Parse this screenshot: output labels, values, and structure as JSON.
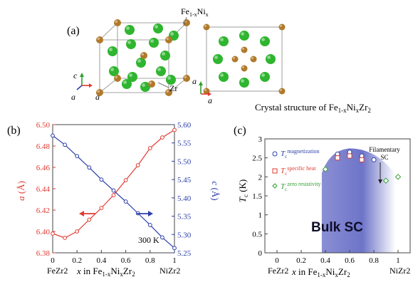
{
  "panel_a": {
    "label": "(a)",
    "atom_label_feni": "Fe1-xNix",
    "atom_label_zr": "Zr",
    "axis_c": "c",
    "axis_a1": "a",
    "axis_a2": "a",
    "axis_a3": "a",
    "axis_a4": "a",
    "caption": "Crystal structure of Fe1-xNixZr2",
    "colors": {
      "zr_atom": "#2fb52f",
      "feni_atom": "#b07a2a",
      "cell_edge": "#9a9a9a"
    }
  },
  "panel_b": {
    "label": "(b)",
    "temp_label": "300 K",
    "x_end_left": "FeZr2",
    "x_end_right": "NiZr2"
  },
  "panel_c": {
    "label": "(c)",
    "region_label": "Bulk SC",
    "filamentary_label": "Filamentary SC",
    "x_end_left": "FeZr2",
    "x_end_right": "NiZr2",
    "legend_magnetization": "magnetization",
    "legend_specific_heat": "specific heat",
    "legend_zero_resistivity": "zero resistivity"
  },
  "chart_data": [
    {
      "type": "line",
      "panel": "b",
      "xlabel": "x in Fe1-xNixZr2",
      "xlim": [
        0,
        1
      ],
      "x_ticks": [
        0,
        0.2,
        0.4,
        0.6,
        0.8,
        1
      ],
      "series": [
        {
          "axis": "left",
          "ylabel": "a (Å)",
          "ylim": [
            6.38,
            6.5
          ],
          "y_ticks": [
            6.38,
            6.4,
            6.42,
            6.44,
            6.46,
            6.48,
            6.5
          ],
          "color": "#e03a2f",
          "x": [
            0,
            0.1,
            0.2,
            0.3,
            0.4,
            0.5,
            0.6,
            0.7,
            0.8,
            0.9,
            1.0
          ],
          "values": [
            6.398,
            6.394,
            6.4,
            6.411,
            6.422,
            6.434,
            6.448,
            6.462,
            6.478,
            6.488,
            6.495
          ]
        },
        {
          "axis": "right",
          "ylabel": "c (Å)",
          "ylim": [
            5.25,
            5.6
          ],
          "y_ticks": [
            5.25,
            5.3,
            5.35,
            5.4,
            5.45,
            5.5,
            5.55,
            5.6
          ],
          "color": "#2c3fa8",
          "x": [
            0,
            0.1,
            0.2,
            0.3,
            0.4,
            0.5,
            0.6,
            0.7,
            0.8,
            0.9,
            1.0
          ],
          "values": [
            5.57,
            5.545,
            5.514,
            5.483,
            5.45,
            5.42,
            5.39,
            5.358,
            5.326,
            5.292,
            5.263
          ]
        }
      ]
    },
    {
      "type": "scatter",
      "panel": "c",
      "xlabel": "x in Fe1-xNixZr2",
      "ylabel": "Tc (K)",
      "xlim": [
        -0.1,
        1.1
      ],
      "ylim": [
        0,
        3
      ],
      "x_ticks": [
        0,
        0.2,
        0.4,
        0.6,
        0.8,
        1
      ],
      "y_ticks": [
        0,
        0.5,
        1,
        1.5,
        2,
        2.5,
        3
      ],
      "series": [
        {
          "name": "magnetization",
          "marker": "circle",
          "color": "#2c3fa8",
          "x": [
            0.5,
            0.6,
            0.7,
            0.8
          ],
          "values": [
            2.6,
            2.65,
            2.55,
            2.45
          ]
        },
        {
          "name": "specific heat",
          "marker": "square",
          "color": "#e03a2f",
          "x": [
            0.5,
            0.6,
            0.7
          ],
          "values": [
            2.5,
            2.55,
            2.45
          ]
        },
        {
          "name": "zero resistivity",
          "marker": "diamond",
          "color": "#2fa02f",
          "x": [
            0.4,
            0.9,
            1.0
          ],
          "values": [
            2.2,
            1.9,
            2.0
          ]
        }
      ]
    }
  ]
}
